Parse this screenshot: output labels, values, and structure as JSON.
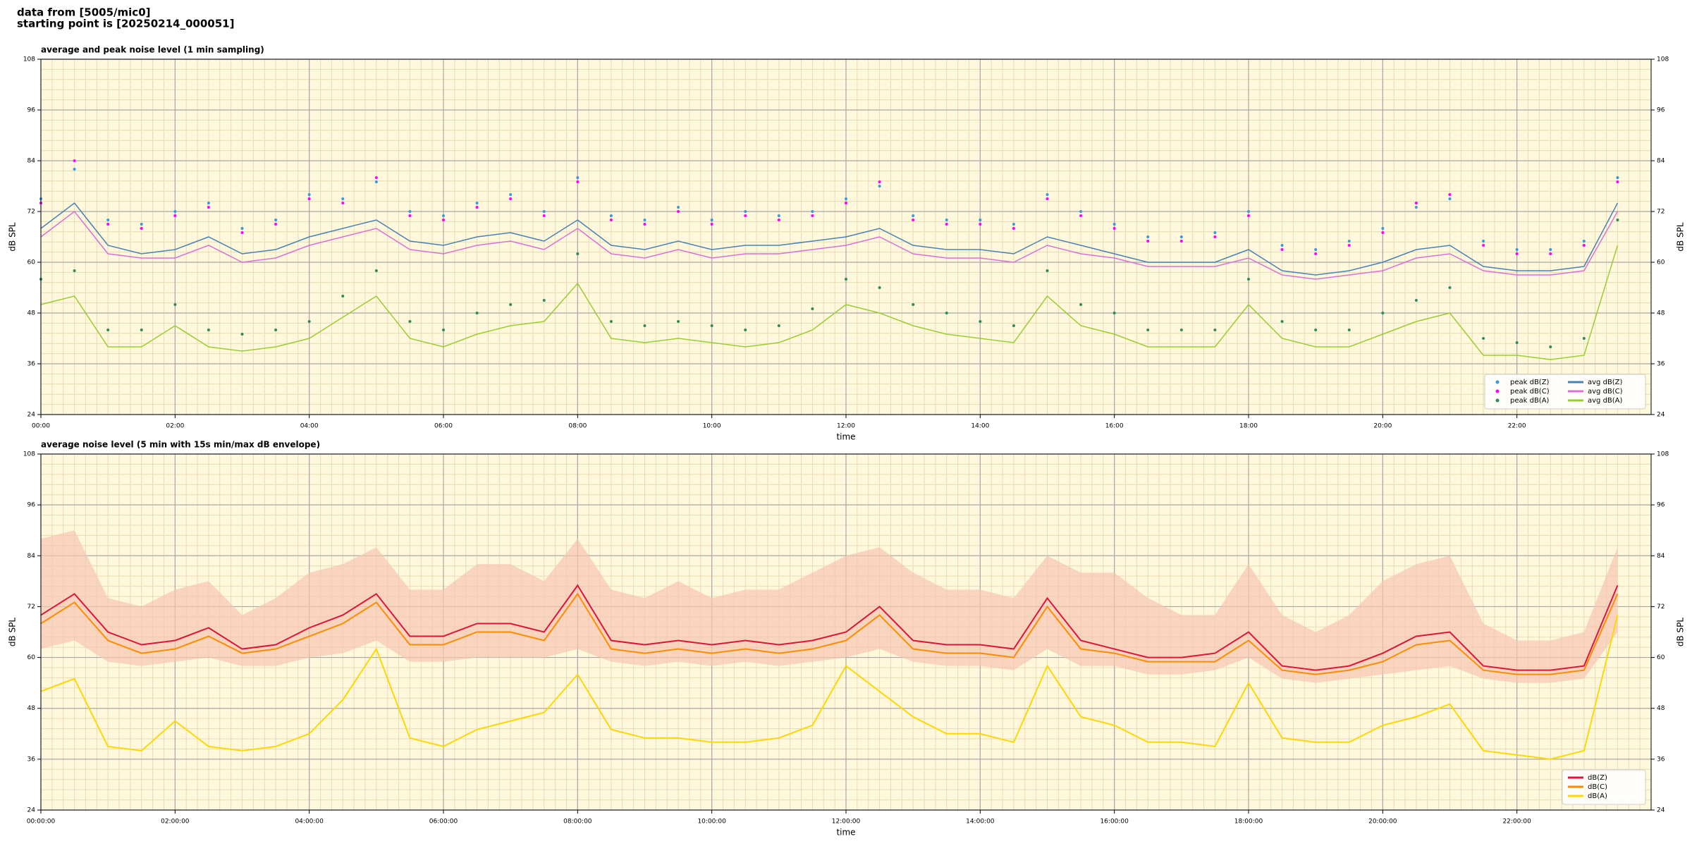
{
  "header": [
    "data from [5005/mic0]",
    "starting point is [20250214_000051]"
  ],
  "chart_data": [
    {
      "type": "line",
      "title": "average and peak noise level (1 min sampling)",
      "xlabel": "time",
      "ylabel": "dB SPL",
      "xlim": [
        0,
        24
      ],
      "ylim": [
        24,
        108
      ],
      "yticks": [
        24,
        36,
        48,
        60,
        72,
        84,
        96,
        108
      ],
      "xticks": [
        {
          "value": 0,
          "label": "00:00"
        },
        {
          "value": 2,
          "label": "02:00"
        },
        {
          "value": 4,
          "label": "04:00"
        },
        {
          "value": 6,
          "label": "06:00"
        },
        {
          "value": 8,
          "label": "08:00"
        },
        {
          "value": 10,
          "label": "10:00"
        },
        {
          "value": 12,
          "label": "12:00"
        },
        {
          "value": 14,
          "label": "14:00"
        },
        {
          "value": 16,
          "label": "16:00"
        },
        {
          "value": 18,
          "label": "18:00"
        },
        {
          "value": 20,
          "label": "20:00"
        },
        {
          "value": 22,
          "label": "22:00"
        }
      ],
      "grid": true,
      "legend": "lower right",
      "background": "#fff8dc",
      "x": [
        0,
        0.5,
        1,
        1.5,
        2,
        2.5,
        3,
        3.5,
        4,
        4.5,
        5,
        5.5,
        6,
        6.5,
        7,
        7.5,
        8,
        8.5,
        9,
        9.5,
        10,
        10.5,
        11,
        11.5,
        12,
        12.5,
        13,
        13.5,
        14,
        14.5,
        15,
        15.5,
        16,
        16.5,
        17,
        17.5,
        18,
        18.5,
        19,
        19.5,
        20,
        20.5,
        21,
        21.5,
        22,
        22.5,
        23,
        23.5
      ],
      "series": [
        {
          "name": "peak dB(Z)",
          "kind": "scatter",
          "color": "#3a9ad9",
          "values": [
            75,
            82,
            70,
            69,
            72,
            74,
            68,
            70,
            76,
            75,
            79,
            72,
            71,
            74,
            76,
            72,
            80,
            71,
            70,
            73,
            70,
            72,
            71,
            72,
            75,
            78,
            71,
            70,
            70,
            69,
            76,
            72,
            69,
            66,
            66,
            67,
            72,
            64,
            63,
            65,
            68,
            73,
            75,
            65,
            63,
            63,
            65,
            80
          ]
        },
        {
          "name": "peak dB(C)",
          "kind": "scatter",
          "color": "#ff00ff",
          "values": [
            74,
            84,
            69,
            68,
            71,
            73,
            67,
            69,
            75,
            74,
            80,
            71,
            70,
            73,
            75,
            71,
            79,
            70,
            69,
            72,
            69,
            71,
            70,
            71,
            74,
            79,
            70,
            69,
            69,
            68,
            75,
            71,
            68,
            65,
            65,
            66,
            71,
            63,
            62,
            64,
            67,
            74,
            76,
            64,
            62,
            62,
            64,
            79
          ]
        },
        {
          "name": "peak dB(A)",
          "kind": "scatter",
          "color": "#2e8b57",
          "values": [
            56,
            58,
            44,
            44,
            50,
            44,
            43,
            44,
            46,
            52,
            58,
            46,
            44,
            48,
            50,
            51,
            62,
            46,
            45,
            46,
            45,
            44,
            45,
            49,
            56,
            54,
            50,
            48,
            46,
            45,
            58,
            50,
            48,
            44,
            44,
            44,
            56,
            46,
            44,
            44,
            48,
            51,
            54,
            42,
            41,
            40,
            42,
            70
          ]
        },
        {
          "name": "avg dB(Z)",
          "kind": "line",
          "color": "#4682b4",
          "values": [
            68,
            74,
            64,
            62,
            63,
            66,
            62,
            63,
            66,
            68,
            70,
            65,
            64,
            66,
            67,
            65,
            70,
            64,
            63,
            65,
            63,
            64,
            64,
            65,
            66,
            68,
            64,
            63,
            63,
            62,
            66,
            64,
            62,
            60,
            60,
            60,
            63,
            58,
            57,
            58,
            60,
            63,
            64,
            59,
            58,
            58,
            59,
            74
          ]
        },
        {
          "name": "avg dB(C)",
          "kind": "line",
          "color": "#da70d6",
          "values": [
            66,
            72,
            62,
            61,
            61,
            64,
            60,
            61,
            64,
            66,
            68,
            63,
            62,
            64,
            65,
            63,
            68,
            62,
            61,
            63,
            61,
            62,
            62,
            63,
            64,
            66,
            62,
            61,
            61,
            60,
            64,
            62,
            61,
            59,
            59,
            59,
            61,
            57,
            56,
            57,
            58,
            61,
            62,
            58,
            57,
            57,
            58,
            72
          ]
        },
        {
          "name": "avg dB(A)",
          "kind": "line",
          "color": "#9acd32",
          "values": [
            50,
            52,
            40,
            40,
            45,
            40,
            39,
            40,
            42,
            47,
            52,
            42,
            40,
            43,
            45,
            46,
            55,
            42,
            41,
            42,
            41,
            40,
            41,
            44,
            50,
            48,
            45,
            43,
            42,
            41,
            52,
            45,
            43,
            40,
            40,
            40,
            50,
            42,
            40,
            40,
            43,
            46,
            48,
            38,
            38,
            37,
            38,
            64
          ]
        }
      ]
    },
    {
      "type": "line",
      "title": "average noise level (5 min with 15s min/max dB envelope)",
      "xlabel": "time",
      "ylabel": "dB SPL",
      "xlim": [
        0,
        24
      ],
      "ylim": [
        24,
        108
      ],
      "yticks": [
        24,
        36,
        48,
        60,
        72,
        84,
        96,
        108
      ],
      "xticks": [
        {
          "value": 0,
          "label": "00:00:00"
        },
        {
          "value": 2,
          "label": "02:00:00"
        },
        {
          "value": 4,
          "label": "04:00:00"
        },
        {
          "value": 6,
          "label": "06:00:00"
        },
        {
          "value": 8,
          "label": "08:00:00"
        },
        {
          "value": 10,
          "label": "10:00:00"
        },
        {
          "value": 12,
          "label": "12:00:00"
        },
        {
          "value": 14,
          "label": "14:00:00"
        },
        {
          "value": 16,
          "label": "16:00:00"
        },
        {
          "value": 18,
          "label": "18:00:00"
        },
        {
          "value": 20,
          "label": "20:00:00"
        },
        {
          "value": 22,
          "label": "22:00:00"
        }
      ],
      "grid": true,
      "legend": "lower right",
      "background": "#fff8dc",
      "x": [
        0,
        0.5,
        1,
        1.5,
        2,
        2.5,
        3,
        3.5,
        4,
        4.5,
        5,
        5.5,
        6,
        6.5,
        7,
        7.5,
        8,
        8.5,
        9,
        9.5,
        10,
        10.5,
        11,
        11.5,
        12,
        12.5,
        13,
        13.5,
        14,
        14.5,
        15,
        15.5,
        16,
        16.5,
        17,
        17.5,
        18,
        18.5,
        19,
        19.5,
        20,
        20.5,
        21,
        21.5,
        22,
        22.5,
        23,
        23.5
      ],
      "envelope": {
        "color": "#f6c4b0",
        "upper": [
          88,
          90,
          74,
          72,
          76,
          78,
          70,
          74,
          80,
          82,
          86,
          76,
          76,
          82,
          82,
          78,
          88,
          76,
          74,
          78,
          74,
          76,
          76,
          80,
          84,
          86,
          80,
          76,
          76,
          74,
          84,
          80,
          80,
          74,
          70,
          70,
          82,
          70,
          66,
          70,
          78,
          82,
          84,
          68,
          64,
          64,
          66,
          86
        ],
        "lower": [
          62,
          64,
          59,
          58,
          59,
          60,
          58,
          58,
          60,
          61,
          64,
          59,
          59,
          60,
          60,
          60,
          62,
          59,
          58,
          59,
          58,
          59,
          58,
          59,
          60,
          62,
          59,
          58,
          58,
          57,
          62,
          58,
          58,
          56,
          56,
          57,
          60,
          55,
          54,
          55,
          56,
          57,
          58,
          55,
          54,
          54,
          55,
          66
        ]
      },
      "series": [
        {
          "name": "dB(Z)",
          "kind": "line",
          "color": "#dc143c",
          "values": [
            70,
            75,
            66,
            63,
            64,
            67,
            62,
            63,
            67,
            70,
            75,
            65,
            65,
            68,
            68,
            66,
            77,
            64,
            63,
            64,
            63,
            64,
            63,
            64,
            66,
            72,
            64,
            63,
            63,
            62,
            74,
            64,
            62,
            60,
            60,
            61,
            66,
            58,
            57,
            58,
            61,
            65,
            66,
            58,
            57,
            57,
            58,
            77
          ]
        },
        {
          "name": "dB(C)",
          "kind": "line",
          "color": "#ff8c00",
          "values": [
            68,
            73,
            64,
            61,
            62,
            65,
            61,
            62,
            65,
            68,
            73,
            63,
            63,
            66,
            66,
            64,
            75,
            62,
            61,
            62,
            61,
            62,
            61,
            62,
            64,
            70,
            62,
            61,
            61,
            60,
            72,
            62,
            61,
            59,
            59,
            59,
            64,
            57,
            56,
            57,
            59,
            63,
            64,
            57,
            56,
            56,
            57,
            75
          ]
        },
        {
          "name": "dB(A)",
          "kind": "line",
          "color": "#ffd700",
          "values": [
            52,
            55,
            39,
            38,
            45,
            39,
            38,
            39,
            42,
            50,
            62,
            41,
            39,
            43,
            45,
            47,
            56,
            43,
            41,
            41,
            40,
            40,
            41,
            44,
            58,
            52,
            46,
            42,
            42,
            40,
            58,
            46,
            44,
            40,
            40,
            39,
            54,
            41,
            40,
            40,
            44,
            46,
            49,
            38,
            37,
            36,
            38,
            70
          ]
        }
      ]
    }
  ]
}
